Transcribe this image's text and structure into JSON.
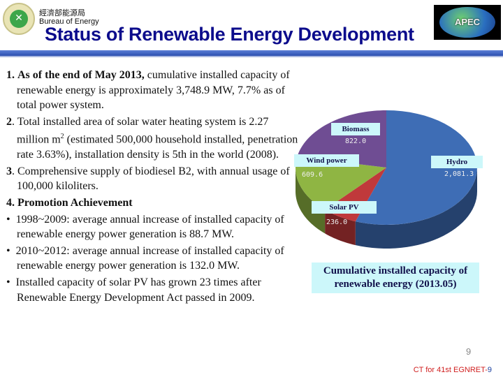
{
  "header": {
    "org_cn": "經濟部能源局",
    "org_en": "Bureau of Energy",
    "title": "Status of Renewable Energy Development",
    "apec_logo": "APEC"
  },
  "body": {
    "p1_num": "1.",
    "p1_bold": "As of the end of May 2013,",
    "p1_text": " cumulative installed capacity of renewable energy is approximately 3,748.9 MW, 7.7% as of total power system.",
    "p2_num": "2",
    "p2_text_a": ". Total installed area of solar water heating system is 2.27 million m",
    "p2_sup": "2",
    "p2_text_b": " (estimated 500,000 household installed, penetration rate 3.63%), installation density is 5th in the world (2008).",
    "p3_num": "3",
    "p3_text": ". Comprehensive supply of biodiesel B2, with annual usage of 100,000 kiloliters.",
    "p4_heading": "4. Promotion Achievement",
    "bullets": [
      "1998~2009: average annual increase of installed capacity of renewable energy power generation is 88.7 MW.",
      "2010~2012: average annual increase of installed capacity of renewable energy power generation is 132.0 MW.",
      "Installed capacity of solar PV has grown 23 times after Renewable Energy Development Act passed in 2009."
    ]
  },
  "chart_data": {
    "type": "pie",
    "title": "Cumulative installed capacity of renewable energy (2013.05)",
    "categories": [
      "Hydro",
      "Solar PV",
      "Wind power",
      "Biomass"
    ],
    "values": [
      2081.3,
      236.0,
      609.6,
      822.0
    ],
    "value_labels": [
      "2,081.3",
      "236.0",
      "609.6",
      "822.0"
    ],
    "colors": [
      "#3e6db5",
      "#c0393b",
      "#8fb543",
      "#6f4d93"
    ],
    "style": "3d"
  },
  "footer": {
    "page": "9",
    "event": "CT for 41st EGNRET-",
    "event_num": "9"
  }
}
